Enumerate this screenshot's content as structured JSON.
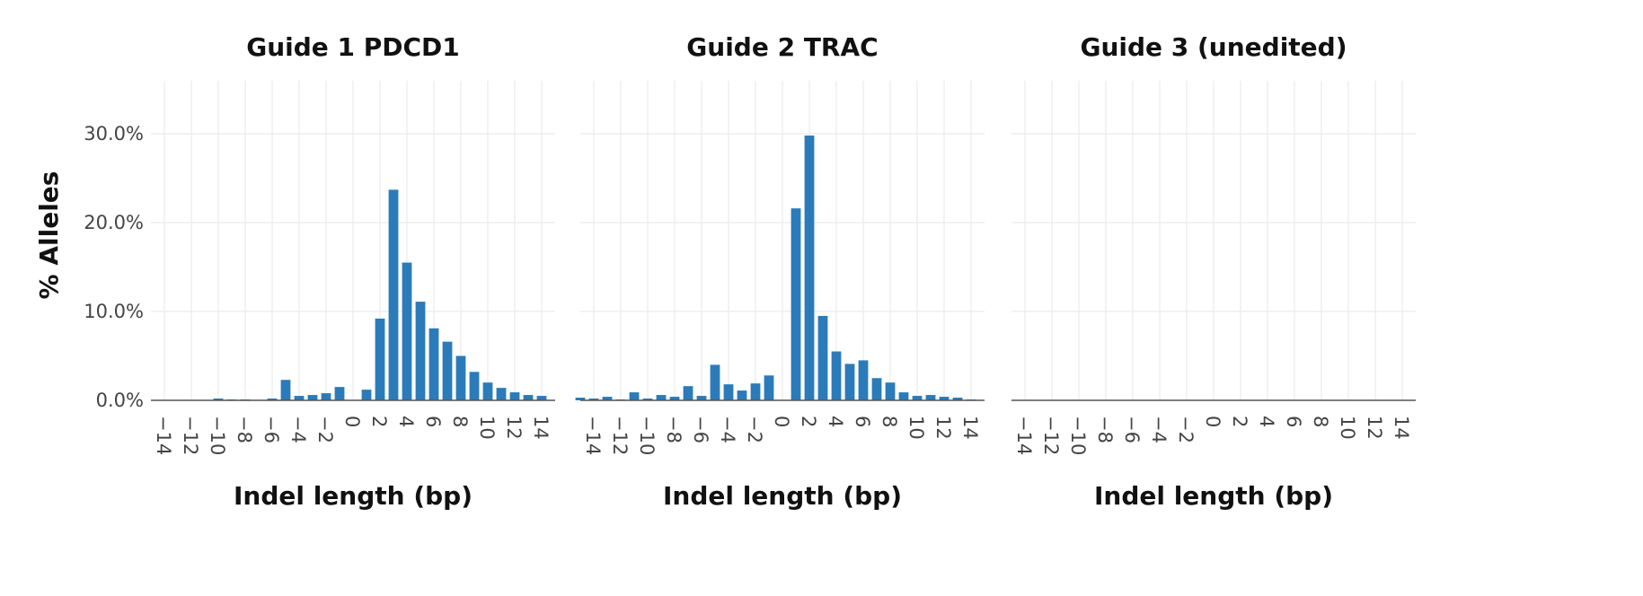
{
  "chart_data": {
    "type": "bar",
    "ylabel": "% Alleles",
    "ylim": [
      0,
      34
    ],
    "yticks": [
      0,
      10,
      20,
      30
    ],
    "ytick_labels": [
      "0.0%",
      "10.0%",
      "20.0%",
      "30.0%"
    ],
    "xlim": [
      -15,
      15
    ],
    "xticks": [
      -14,
      -12,
      -10,
      -8,
      -6,
      -4,
      -2,
      0,
      2,
      4,
      6,
      8,
      10,
      12,
      14
    ],
    "xtick_labels": [
      "−14",
      "−12",
      "−10",
      "−8",
      "−6",
      "−4",
      "−2",
      "0",
      "2",
      "4",
      "6",
      "8",
      "10",
      "12",
      "14"
    ],
    "bar_color": "#2b7bba",
    "panels": [
      {
        "title": "Guide 1 PDCD1",
        "xlabel": "Indel length (bp)",
        "x": [
          -10,
          -9,
          -8,
          -6,
          -5,
          -4,
          -3,
          -2,
          -1,
          1,
          2,
          3,
          4,
          5,
          6,
          7,
          8,
          9,
          10,
          11,
          12,
          13,
          14
        ],
        "values": [
          0.2,
          0.1,
          0.1,
          0.2,
          2.3,
          0.5,
          0.6,
          0.8,
          1.5,
          1.2,
          9.2,
          23.7,
          15.5,
          11.1,
          8.1,
          6.6,
          5.0,
          3.2,
          2.0,
          1.4,
          0.9,
          0.6,
          0.5
        ]
      },
      {
        "title": "Guide 2 TRAC",
        "xlabel": "Indel length (bp)",
        "x": [
          -15,
          -14,
          -13,
          -12,
          -11,
          -10,
          -9,
          -8,
          -7,
          -6,
          -5,
          -4,
          -3,
          -2,
          -1,
          0,
          1,
          2,
          3,
          4,
          5,
          6,
          7,
          8,
          9,
          10,
          11,
          12,
          13,
          14
        ],
        "values": [
          0.3,
          0.2,
          0.4,
          0.1,
          0.9,
          0.2,
          0.6,
          0.4,
          1.6,
          0.5,
          4.0,
          1.8,
          1.1,
          1.9,
          2.8,
          0,
          21.6,
          29.8,
          9.5,
          5.5,
          4.1,
          4.5,
          2.5,
          2.0,
          0.9,
          0.5,
          0.6,
          0.4,
          0.3,
          0.1
        ]
      },
      {
        "title": "Guide 3 (unedited)",
        "xlabel": "Indel length (bp)",
        "x": [],
        "values": []
      }
    ]
  }
}
